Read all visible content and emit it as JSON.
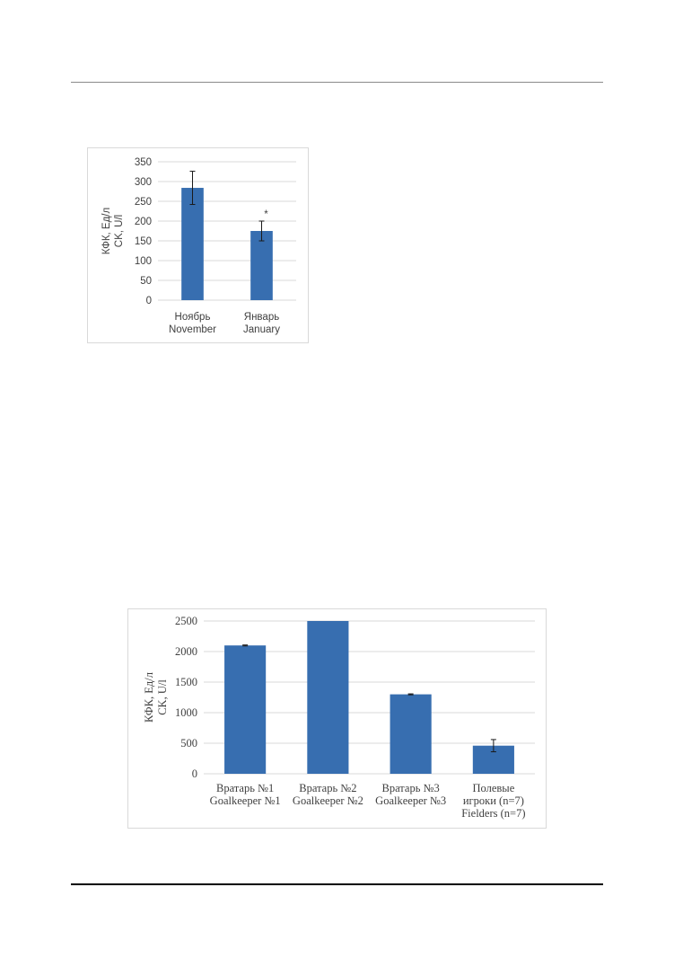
{
  "colors": {
    "bar": "#376eb0",
    "grid": "#d9d9d9",
    "text": "#404040",
    "errorbar": "#1a1a1a"
  },
  "chart_data": [
    {
      "type": "bar",
      "ylabel": [
        "КФК, Ед/л",
        "CK, U/l"
      ],
      "ylim": [
        0,
        350
      ],
      "yticks": [
        0,
        50,
        100,
        150,
        200,
        250,
        300,
        350
      ],
      "categories": [
        [
          "Ноябрь",
          "November"
        ],
        [
          "Январь",
          "January"
        ]
      ],
      "values": [
        284,
        175
      ],
      "error": [
        42,
        25
      ],
      "annotations": [
        "",
        "*"
      ],
      "grid": true
    },
    {
      "type": "bar",
      "ylabel": [
        "КФК, Ед/л",
        "CK, U/l"
      ],
      "ylim": [
        0,
        2500
      ],
      "yticks": [
        0,
        500,
        1000,
        1500,
        2000,
        2500
      ],
      "categories": [
        [
          "Вратарь №1",
          "Goalkeeper №1"
        ],
        [
          "Вратарь №2",
          "Goalkeeper №2"
        ],
        [
          "Вратарь №3",
          "Goalkeeper №3"
        ],
        [
          "Полевые",
          "игроки (n=7)",
          "Fielders (n=7)"
        ]
      ],
      "values": [
        2100,
        2500,
        1300,
        460
      ],
      "error": [
        8,
        0,
        8,
        100
      ],
      "annotations": [
        "",
        "",
        "",
        ""
      ],
      "grid": true
    }
  ]
}
